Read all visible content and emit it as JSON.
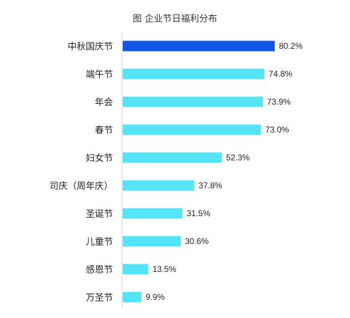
{
  "chart_data": {
    "type": "bar",
    "orientation": "horizontal",
    "title": "图  企业节日福利分布",
    "categories": [
      "中秋国庆节",
      "端午节",
      "年会",
      "春节",
      "妇女节",
      "司庆（周年庆）",
      "圣诞节",
      "儿童节",
      "感恩节",
      "万圣节"
    ],
    "values": [
      80.2,
      74.8,
      73.9,
      73.0,
      52.3,
      37.8,
      31.5,
      30.6,
      13.5,
      9.9
    ],
    "value_labels": [
      "80.2%",
      "74.8%",
      "73.9%",
      "73.0%",
      "52.3%",
      "37.8%",
      "31.5%",
      "30.6%",
      "13.5%",
      "9.9%"
    ],
    "xlim": [
      0,
      90
    ],
    "grid": false,
    "legend": "none",
    "colors": {
      "highlight": "#1256e6",
      "bar": "#55e4f7"
    },
    "highlight_index": 0
  }
}
